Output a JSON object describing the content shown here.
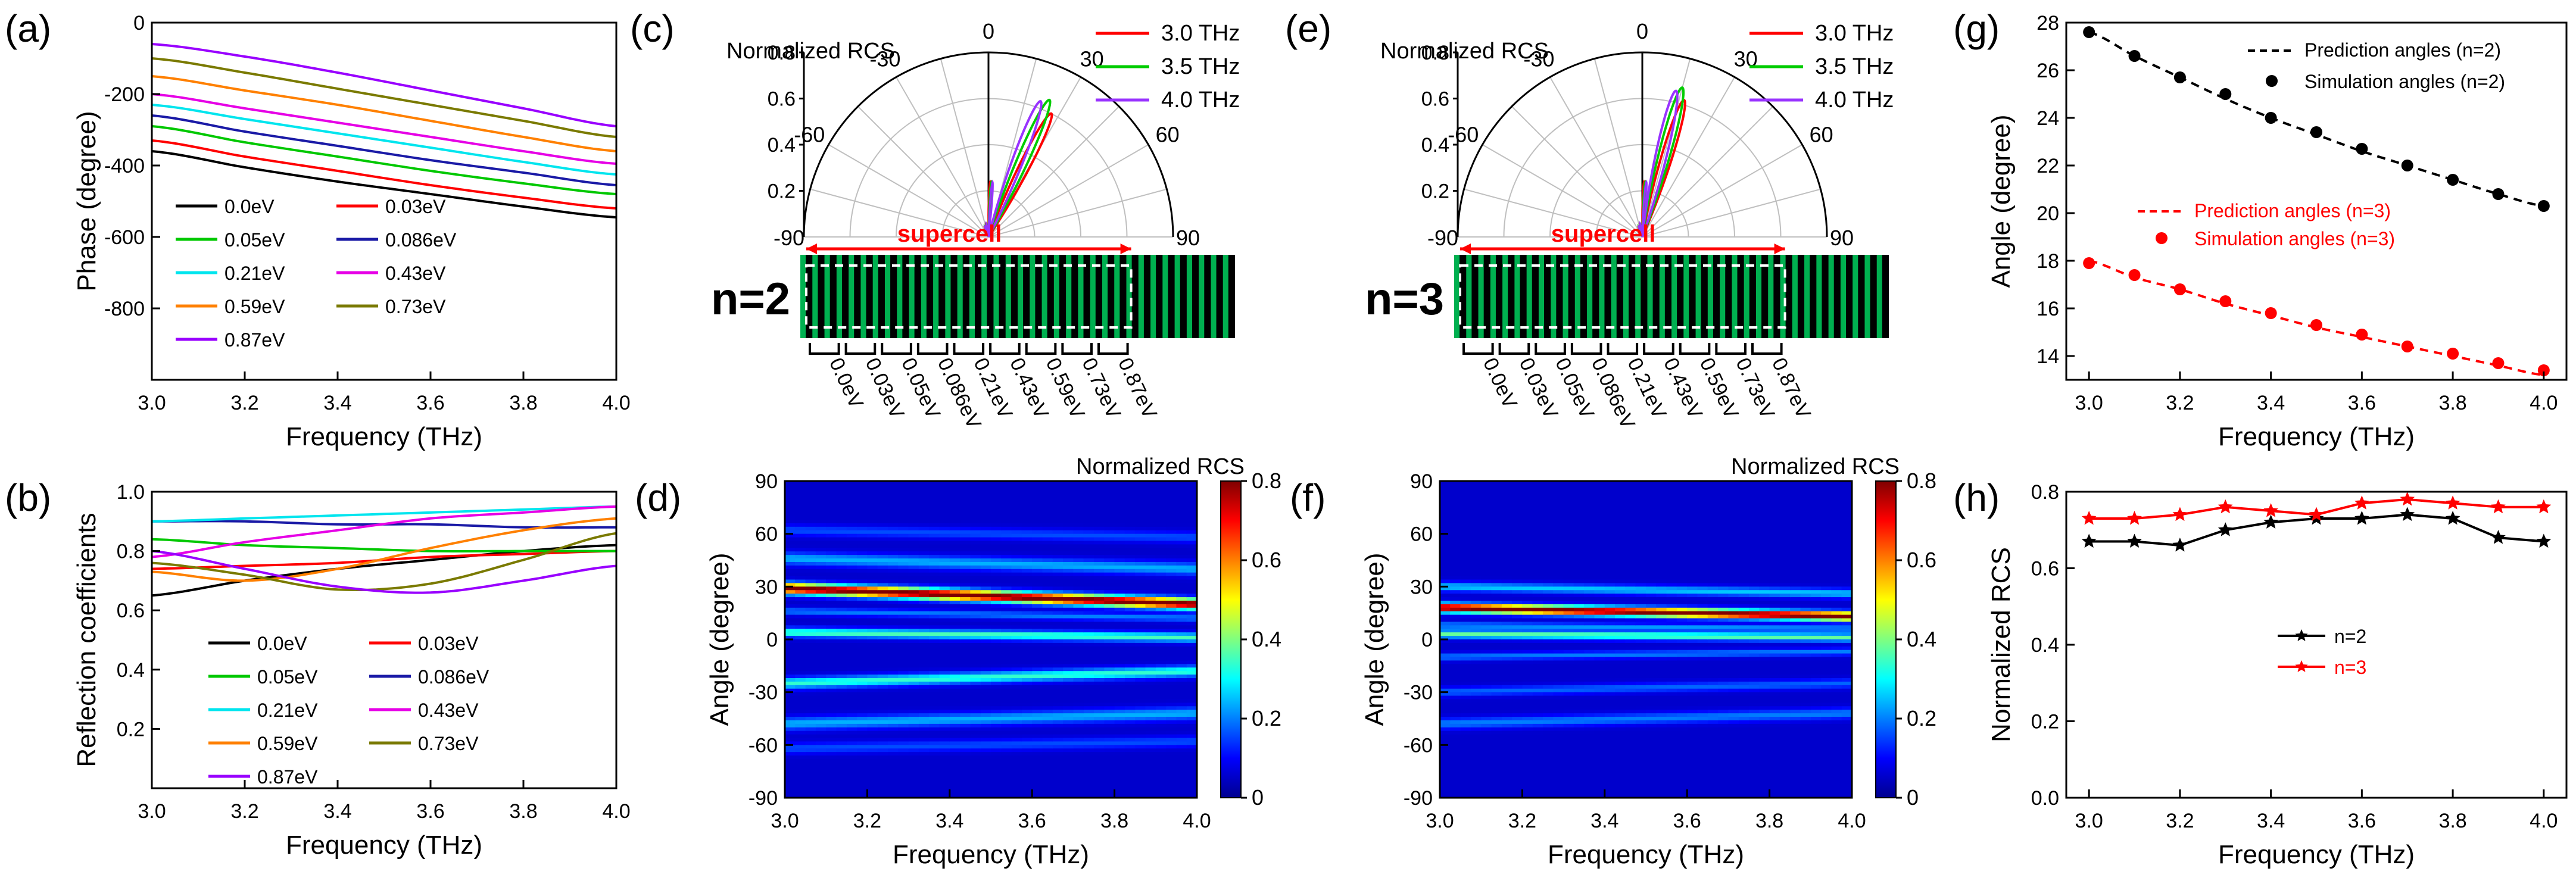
{
  "figure": {
    "panel_labels": [
      "(a)",
      "(b)",
      "(c)",
      "(d)",
      "(e)",
      "(f)",
      "(g)",
      "(h)"
    ]
  },
  "colors": {
    "0.0eV": "#000000",
    "0.03eV": "#ff0000",
    "0.05eV": "#00c800",
    "0.086eV": "#1a1aa6",
    "0.21eV": "#00e5ee",
    "0.43eV": "#e600e6",
    "0.59eV": "#ff8000",
    "0.73eV": "#7a7a00",
    "0.87eV": "#9900ff",
    "f30": "#ff0000",
    "f35": "#00cc00",
    "f40": "#9933ff",
    "green": "#00b050",
    "axis": "#000000",
    "grid": "#bfbfbf",
    "pred_n3": "#ff0000"
  },
  "chart_data": [
    {
      "panel": "a",
      "type": "line",
      "xlabel": "Frequency (THz)",
      "ylabel": "Phase (degree)",
      "xlim": [
        3.0,
        4.0
      ],
      "ylim": [
        -1000,
        0
      ],
      "xticks": [
        3.0,
        3.2,
        3.4,
        3.6,
        3.8,
        4.0
      ],
      "yticks": [
        0,
        -200,
        -400,
        -600,
        -800
      ],
      "x": [
        3.0,
        3.2,
        3.4,
        3.6,
        3.8,
        4.0
      ],
      "series": [
        {
          "name": "0.0eV",
          "values": [
            -360,
            -405,
            -445,
            -480,
            -515,
            -545
          ]
        },
        {
          "name": "0.03eV",
          "values": [
            -330,
            -375,
            -415,
            -455,
            -490,
            -520
          ]
        },
        {
          "name": "0.05eV",
          "values": [
            -290,
            -335,
            -375,
            -415,
            -450,
            -480
          ]
        },
        {
          "name": "0.086eV",
          "values": [
            -260,
            -305,
            -345,
            -385,
            -420,
            -455
          ]
        },
        {
          "name": "0.21eV",
          "values": [
            -230,
            -270,
            -310,
            -350,
            -390,
            -425
          ]
        },
        {
          "name": "0.43eV",
          "values": [
            -200,
            -240,
            -280,
            -320,
            -360,
            -395
          ]
        },
        {
          "name": "0.59eV",
          "values": [
            -150,
            -190,
            -230,
            -275,
            -320,
            -360
          ]
        },
        {
          "name": "0.73eV",
          "values": [
            -100,
            -140,
            -185,
            -230,
            -275,
            -320
          ]
        },
        {
          "name": "0.87eV",
          "values": [
            -60,
            -95,
            -140,
            -190,
            -240,
            -290
          ]
        }
      ],
      "legend": "bottom-left"
    },
    {
      "panel": "b",
      "type": "line",
      "xlabel": "Frequency (THz)",
      "ylabel": "Reflection coefficients",
      "xlim": [
        3.0,
        4.0
      ],
      "ylim": [
        0.0,
        1.0
      ],
      "xticks": [
        3.0,
        3.2,
        3.4,
        3.6,
        3.8,
        4.0
      ],
      "yticks": [
        0.2,
        0.4,
        0.6,
        0.8,
        1.0
      ],
      "x": [
        3.0,
        3.2,
        3.4,
        3.6,
        3.8,
        4.0
      ],
      "series": [
        {
          "name": "0.0eV",
          "values": [
            0.65,
            0.7,
            0.74,
            0.77,
            0.8,
            0.82
          ]
        },
        {
          "name": "0.03eV",
          "values": [
            0.74,
            0.75,
            0.76,
            0.78,
            0.79,
            0.8
          ]
        },
        {
          "name": "0.05eV",
          "values": [
            0.84,
            0.82,
            0.81,
            0.8,
            0.8,
            0.8
          ]
        },
        {
          "name": "0.086eV",
          "values": [
            0.9,
            0.9,
            0.89,
            0.89,
            0.88,
            0.88
          ]
        },
        {
          "name": "0.21eV",
          "values": [
            0.9,
            0.91,
            0.92,
            0.93,
            0.94,
            0.95
          ]
        },
        {
          "name": "0.43eV",
          "values": [
            0.78,
            0.83,
            0.87,
            0.91,
            0.93,
            0.95
          ]
        },
        {
          "name": "0.59eV",
          "values": [
            0.73,
            0.7,
            0.74,
            0.81,
            0.87,
            0.91
          ]
        },
        {
          "name": "0.73eV",
          "values": [
            0.76,
            0.72,
            0.67,
            0.69,
            0.77,
            0.86
          ]
        },
        {
          "name": "0.87eV",
          "values": [
            0.8,
            0.74,
            0.68,
            0.66,
            0.7,
            0.75
          ]
        }
      ],
      "legend": "bottom-left"
    },
    {
      "panel": "c",
      "type": "polar",
      "title": "Normalized RCS",
      "n_label": "n=2",
      "supercell_label": "supercell",
      "r_ticks": [
        0.2,
        0.4,
        0.6,
        0.8
      ],
      "r_lim": [
        0,
        0.8
      ],
      "angle_ticks": [
        -90,
        -60,
        -30,
        0,
        30,
        60,
        90
      ],
      "series": [
        {
          "name": "3.0 THz",
          "main_lobe_angle_deg": 27,
          "main_lobe_rcs": 0.6
        },
        {
          "name": "3.5 THz",
          "main_lobe_angle_deg": 24,
          "main_lobe_rcs": 0.65
        },
        {
          "name": "4.0 THz",
          "main_lobe_angle_deg": 21,
          "main_lobe_rcs": 0.63
        }
      ],
      "cell_labels": [
        "0.0eV",
        "0.03eV",
        "0.05eV",
        "0.086eV",
        "0.21eV",
        "0.43eV",
        "0.59eV",
        "0.73eV",
        "0.87eV"
      ],
      "legend": "top-right"
    },
    {
      "panel": "e",
      "type": "polar",
      "title": "Normalized RCS",
      "n_label": "n=3",
      "supercell_label": "supercell",
      "r_ticks": [
        0.2,
        0.4,
        0.6,
        0.8
      ],
      "r_lim": [
        0,
        0.8
      ],
      "angle_ticks": [
        -90,
        -60,
        -30,
        0,
        30,
        60,
        90
      ],
      "series": [
        {
          "name": "3.0 THz",
          "main_lobe_angle_deg": 17,
          "main_lobe_rcs": 0.62
        },
        {
          "name": "3.5 THz",
          "main_lobe_angle_deg": 15,
          "main_lobe_rcs": 0.67
        },
        {
          "name": "4.0 THz",
          "main_lobe_angle_deg": 13,
          "main_lobe_rcs": 0.65
        }
      ],
      "cell_labels": [
        "0.0eV",
        "0.03eV",
        "0.05eV",
        "0.086eV",
        "0.21eV",
        "0.43eV",
        "0.59eV",
        "0.73eV",
        "0.87eV"
      ],
      "legend": "top-right"
    },
    {
      "panel": "d",
      "type": "heatmap",
      "title": "Normalized RCS",
      "xlabel": "Frequency (THz)",
      "ylabel": "Angle (degree)",
      "xlim": [
        3.0,
        4.0
      ],
      "ylim": [
        -90,
        90
      ],
      "xticks": [
        3.0,
        3.2,
        3.4,
        3.6,
        3.8,
        4.0
      ],
      "yticks": [
        90,
        60,
        30,
        0,
        -30,
        -60,
        -90
      ],
      "colorbar_ticks": [
        0,
        0.2,
        0.4,
        0.6,
        0.8
      ],
      "colorbar_lim": [
        0,
        0.8
      ],
      "bands": [
        {
          "angle_start": 29,
          "angle_end": 20,
          "peak": 0.78,
          "width": 3.0
        },
        {
          "angle_start": 4,
          "angle_end": 1,
          "peak": 0.3,
          "width": 2.5
        },
        {
          "angle_start": 46,
          "angle_end": 40,
          "peak": 0.18,
          "width": 3.5
        },
        {
          "angle_start": 62,
          "angle_end": 58,
          "peak": 0.1,
          "width": 3.0
        },
        {
          "angle_start": 16,
          "angle_end": 12,
          "peak": 0.14,
          "width": 2.0
        },
        {
          "angle_start": -25,
          "angle_end": -18,
          "peak": 0.28,
          "width": 3.0
        },
        {
          "angle_start": -48,
          "angle_end": -42,
          "peak": 0.18,
          "width": 3.5
        },
        {
          "angle_start": -62,
          "angle_end": -58,
          "peak": 0.1,
          "width": 3.0
        }
      ]
    },
    {
      "panel": "f",
      "type": "heatmap",
      "title": "Normalized RCS",
      "xlabel": "Frequency (THz)",
      "ylabel": "Angle (degree)",
      "xlim": [
        3.0,
        4.0
      ],
      "ylim": [
        -90,
        90
      ],
      "xticks": [
        3.0,
        3.2,
        3.4,
        3.6,
        3.8,
        4.0
      ],
      "yticks": [
        90,
        60,
        30,
        0,
        -30,
        -60,
        -90
      ],
      "colorbar_ticks": [
        0,
        0.2,
        0.4,
        0.6,
        0.8
      ],
      "colorbar_lim": [
        0,
        0.8
      ],
      "bands": [
        {
          "angle_start": 18,
          "angle_end": 13,
          "peak": 0.78,
          "width": 2.5
        },
        {
          "angle_start": 3,
          "angle_end": 1,
          "peak": 0.32,
          "width": 2.2
        },
        {
          "angle_start": 30,
          "angle_end": 26,
          "peak": 0.2,
          "width": 2.5
        },
        {
          "angle_start": 8,
          "angle_end": 6,
          "peak": 0.16,
          "width": 1.8
        },
        {
          "angle_start": -10,
          "angle_end": -7,
          "peak": 0.14,
          "width": 2.0
        },
        {
          "angle_start": -30,
          "angle_end": -25,
          "peak": 0.12,
          "width": 2.5
        },
        {
          "angle_start": -48,
          "angle_end": -42,
          "peak": 0.14,
          "width": 3.0
        }
      ]
    },
    {
      "panel": "g",
      "type": "scatter",
      "xlabel": "Frequency (THz)",
      "ylabel": "Angle (degree)",
      "xlim": [
        2.95,
        4.05
      ],
      "ylim": [
        13,
        28
      ],
      "xticks": [
        3.0,
        3.2,
        3.4,
        3.6,
        3.8,
        4.0
      ],
      "yticks": [
        14,
        16,
        18,
        20,
        22,
        24,
        26,
        28
      ],
      "x": [
        3.0,
        3.1,
        3.2,
        3.3,
        3.4,
        3.5,
        3.6,
        3.7,
        3.8,
        3.9,
        4.0
      ],
      "series": [
        {
          "name": "Prediction angles (n=2)",
          "style": "dashed",
          "values": [
            27.6,
            26.6,
            25.7,
            24.8,
            24.0,
            23.3,
            22.6,
            22.0,
            21.4,
            20.8,
            20.3
          ]
        },
        {
          "name": "Simulation angles (n=2)",
          "style": "dots",
          "values": [
            27.6,
            26.6,
            25.7,
            25.0,
            24.0,
            23.4,
            22.7,
            22.0,
            21.4,
            20.8,
            20.3
          ]
        },
        {
          "name": "Prediction angles (n=3)",
          "style": "dashed",
          "values": [
            18.0,
            17.3,
            16.8,
            16.2,
            15.7,
            15.2,
            14.8,
            14.4,
            14.0,
            13.6,
            13.2
          ]
        },
        {
          "name": "Simulation angles (n=3)",
          "style": "dots",
          "values": [
            17.9,
            17.4,
            16.8,
            16.3,
            15.8,
            15.3,
            14.9,
            14.4,
            14.1,
            13.7,
            13.4
          ]
        }
      ]
    },
    {
      "panel": "h",
      "type": "line",
      "xlabel": "Frequency (THz)",
      "ylabel": "Normalized RCS",
      "xlim": [
        2.95,
        4.05
      ],
      "ylim": [
        0.0,
        0.8
      ],
      "xticks": [
        3.0,
        3.2,
        3.4,
        3.6,
        3.8,
        4.0
      ],
      "yticks": [
        0.0,
        0.2,
        0.4,
        0.6,
        0.8
      ],
      "x": [
        3.0,
        3.1,
        3.2,
        3.3,
        3.4,
        3.5,
        3.6,
        3.7,
        3.8,
        3.9,
        4.0
      ],
      "series": [
        {
          "name": "n=2",
          "values": [
            0.67,
            0.67,
            0.66,
            0.7,
            0.72,
            0.73,
            0.73,
            0.74,
            0.73,
            0.68,
            0.67
          ]
        },
        {
          "name": "n=3",
          "values": [
            0.73,
            0.73,
            0.74,
            0.76,
            0.75,
            0.74,
            0.77,
            0.78,
            0.77,
            0.76,
            0.76
          ]
        }
      ],
      "legend": "center"
    }
  ]
}
